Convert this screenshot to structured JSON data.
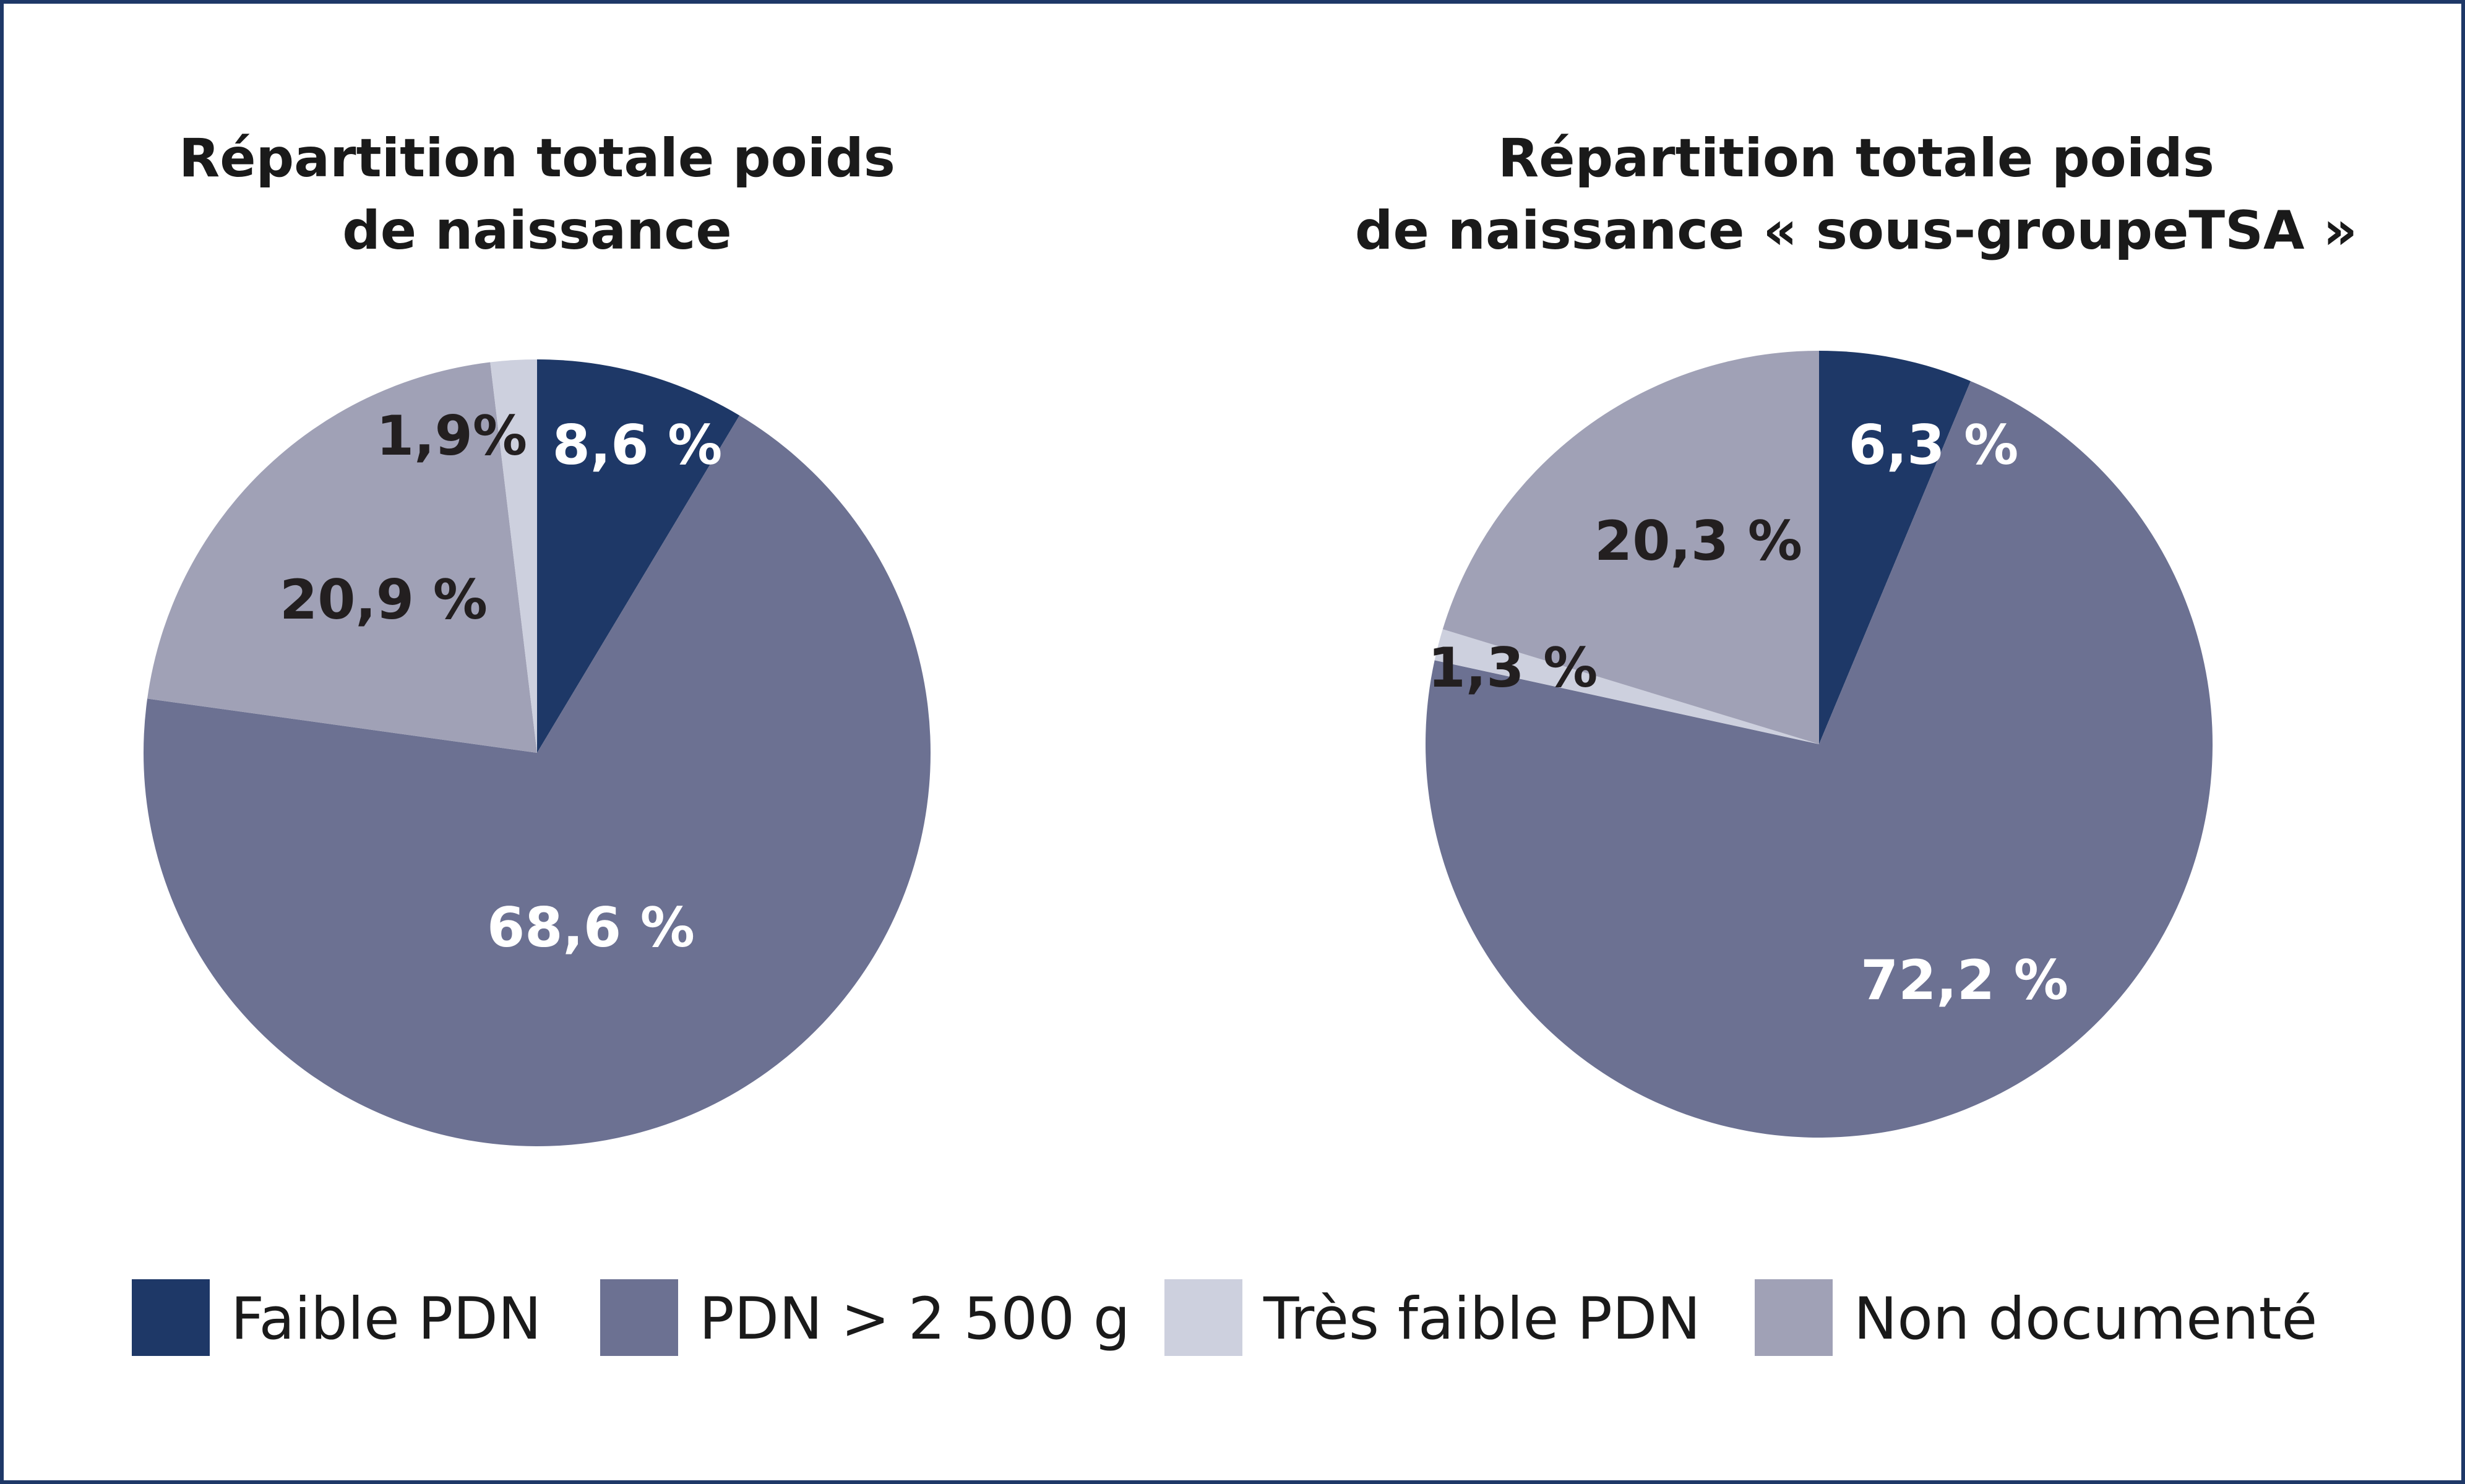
{
  "colors": {
    "faible": "#1e3867",
    "pdn2500": "#6c7192",
    "tres_faible": "#cdd0de",
    "non_doc": "#a0a1b6",
    "border": "#1e3867",
    "label_light": "#ffffff",
    "label_dark": "#231f20"
  },
  "chart_data": [
    {
      "type": "pie",
      "title": [
        "Répartition totale poids",
        "de naissance"
      ],
      "start_angle": "12 o'clock",
      "direction": "clockwise",
      "slices": [
        {
          "category": "Faible PDN",
          "value": 8.6,
          "label": "8,6 %",
          "color_key": "faible",
          "label_color": "label_light"
        },
        {
          "category": "PDN > 2 500 g",
          "value": 68.6,
          "label": "68,6 %",
          "color_key": "pdn2500",
          "label_color": "label_light"
        },
        {
          "category": "Non documenté",
          "value": 20.9,
          "label": "20,9 %",
          "color_key": "non_doc",
          "label_color": "label_dark"
        },
        {
          "category": "Très faible PDN",
          "value": 1.9,
          "label": "1,9%",
          "color_key": "tres_faible",
          "label_color": "label_dark"
        }
      ]
    },
    {
      "type": "pie",
      "title": [
        "Répartition totale poids",
        "de naissance « sous-groupeTSA »"
      ],
      "start_angle": "12 o'clock",
      "direction": "clockwise",
      "slices": [
        {
          "category": "Faible PDN",
          "value": 6.3,
          "label": "6,3 %",
          "color_key": "faible",
          "label_color": "label_light"
        },
        {
          "category": "PDN > 2 500 g",
          "value": 72.2,
          "label": "72,2 %",
          "color_key": "pdn2500",
          "label_color": "label_light"
        },
        {
          "category": "Très faible PDN",
          "value": 1.3,
          "label": "1,3 %",
          "color_key": "tres_faible",
          "label_color": "label_dark"
        },
        {
          "category": "Non documenté",
          "value": 20.3,
          "label": "20,3 %",
          "color_key": "non_doc",
          "label_color": "label_dark"
        }
      ]
    }
  ],
  "legend": {
    "placement": "bottom",
    "items": [
      {
        "label": "Faible PDN",
        "color_key": "faible"
      },
      {
        "label": "PDN > 2 500 g",
        "color_key": "pdn2500"
      },
      {
        "label": "Très faible PDN",
        "color_key": "tres_faible"
      },
      {
        "label": "Non documenté",
        "color_key": "non_doc"
      }
    ]
  }
}
